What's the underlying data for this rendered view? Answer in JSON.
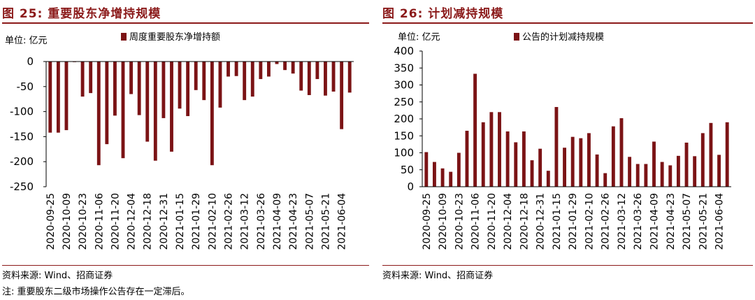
{
  "figures": [
    {
      "title": "图 25:  重要股东净增持规模",
      "unit_label": "单位: 亿元",
      "source": "资料来源: Wind、招商证券",
      "colors": {
        "bar": "#7b1315",
        "axis": "#000000",
        "accent": "#8b1a1a"
      },
      "chart_data": {
        "type": "bar",
        "title": "重要股东净增持规模",
        "ylim": [
          -250,
          0
        ],
        "yticks": [
          0,
          -50,
          -100,
          -150,
          -200,
          -250
        ],
        "xtick_labels": [
          "2020-09-25",
          "2020-10-09",
          "2020-10-23",
          "2020-11-06",
          "2020-11-20",
          "2020-12-04",
          "2020-12-18",
          "2020-12-31",
          "2021-01-15",
          "2021-01-29",
          "2021-02-10",
          "2021-02-26",
          "2021-03-12",
          "2021-03-26",
          "2021-04-09",
          "2021-04-23",
          "2021-05-07",
          "2021-05-21",
          "2021-06-04"
        ],
        "legend": {
          "position": "top",
          "entries": [
            "周度重要股东净增持额"
          ]
        },
        "grid": false,
        "series": [
          {
            "name": "周度重要股东净增持额",
            "values": [
              -142,
              -142,
              -137,
              -1,
              -70,
              -63,
              -207,
              -165,
              -108,
              -193,
              -65,
              -107,
              -160,
              -198,
              -113,
              -180,
              -94,
              -109,
              -57,
              -77,
              -207,
              -92,
              -30,
              -29,
              -77,
              -70,
              -35,
              -30,
              -5,
              -17,
              -24,
              -58,
              -67,
              -35,
              -68,
              -60,
              -135,
              -62
            ]
          }
        ]
      }
    },
    {
      "title": "图 26:  计划减持规模",
      "unit_label": "单位: 亿元",
      "source": "资料来源: Wind、招商证券",
      "colors": {
        "bar": "#7b1315",
        "axis": "#000000",
        "accent": "#8b1a1a"
      },
      "chart_data": {
        "type": "bar",
        "title": "计划减持规模",
        "ylim": [
          0,
          400
        ],
        "yticks": [
          400,
          350,
          300,
          250,
          200,
          150,
          100,
          50,
          0
        ],
        "xtick_labels": [
          "2020-09-25",
          "2020-10-09",
          "2020-10-23",
          "2020-11-06",
          "2020-11-20",
          "2020-12-04",
          "2020-12-18",
          "2020-12-31",
          "2021-01-15",
          "2021-01-29",
          "2021-02-10",
          "2021-02-26",
          "2021-03-12",
          "2021-03-26",
          "2021-04-09",
          "2021-04-23",
          "2021-05-07",
          "2021-05-21",
          "2021-06-04"
        ],
        "legend": {
          "position": "top",
          "entries": [
            "公告的计划减持规模"
          ]
        },
        "grid": false,
        "series": [
          {
            "name": "公告的计划减持规模",
            "values": [
              102,
              73,
              54,
              44,
              100,
              165,
              333,
              190,
              220,
              220,
              163,
              131,
              163,
              78,
              112,
              47,
              235,
              115,
              147,
              143,
              158,
              95,
              40,
              178,
              202,
              88,
              67,
              67,
              133,
              73,
              63,
              91,
              130,
              90,
              158,
              188,
              94,
              190
            ]
          }
        ]
      }
    }
  ],
  "note": "注: 重要股东二级市场操作公告存在一定滞后。"
}
